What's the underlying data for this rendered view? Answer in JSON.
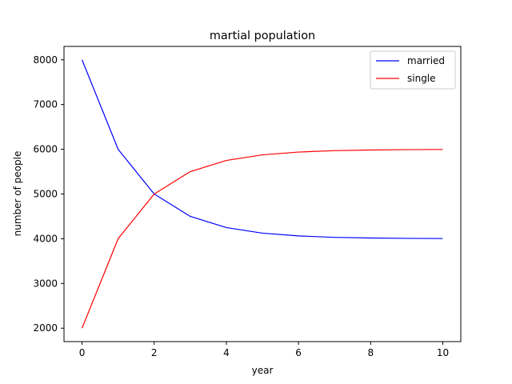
{
  "chart_data": {
    "type": "line",
    "title": "martial population",
    "xlabel": "year",
    "ylabel": "number of people",
    "xlim": [
      -0.5,
      10.5
    ],
    "ylim": [
      1700,
      8300
    ],
    "xticks": [
      0,
      2,
      4,
      6,
      8,
      10
    ],
    "yticks": [
      2000,
      3000,
      4000,
      5000,
      6000,
      7000,
      8000
    ],
    "grid": false,
    "legend_position": "top-right",
    "x": [
      0,
      1,
      2,
      3,
      4,
      5,
      6,
      7,
      8,
      9,
      10
    ],
    "series": [
      {
        "name": "married",
        "color": "#0000ff",
        "values": [
          8000,
          6000,
          5000,
          4500,
          4250,
          4125,
          4063,
          4031,
          4016,
          4008,
          4004
        ]
      },
      {
        "name": "single",
        "color": "#ff0000",
        "values": [
          2000,
          4000,
          5000,
          5500,
          5750,
          5875,
          5938,
          5969,
          5984,
          5992,
          5996
        ]
      }
    ]
  }
}
